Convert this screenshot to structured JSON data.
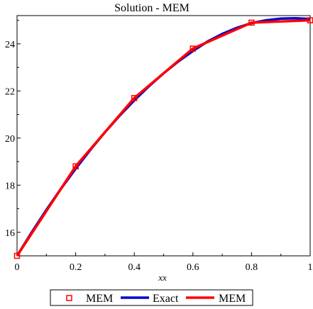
{
  "chart_data": {
    "type": "line",
    "title": "Solution - MEM",
    "xlabel": "xx",
    "ylabel": "",
    "xlim": [
      0,
      1
    ],
    "ylim": [
      15,
      25.2
    ],
    "x_ticks": [
      "0",
      "0.2",
      "0.4",
      "0.6",
      "0.8",
      "1"
    ],
    "y_ticks": [
      "16",
      "18",
      "20",
      "22",
      "24"
    ],
    "x_tick_values": [
      0,
      0.2,
      0.4,
      0.6,
      0.8,
      1
    ],
    "y_tick_values": [
      16,
      18,
      20,
      22,
      24
    ],
    "legend_position": "bottom",
    "series": [
      {
        "name": "MEM",
        "style": "markers",
        "marker": "square",
        "color": "#ff0000",
        "x": [
          0,
          0.2,
          0.4,
          0.6,
          0.8,
          1
        ],
        "y": [
          15.0,
          18.8,
          21.7,
          23.8,
          24.9,
          25.0
        ]
      },
      {
        "name": "Exact",
        "style": "line",
        "color": "#0000cc",
        "x": [
          0,
          0.05,
          0.1,
          0.15,
          0.2,
          0.25,
          0.3,
          0.35,
          0.4,
          0.45,
          0.5,
          0.55,
          0.6,
          0.65,
          0.7,
          0.75,
          0.8,
          0.85,
          0.9,
          0.95,
          1
        ],
        "y": [
          15.0,
          16.0,
          16.95,
          17.85,
          18.7,
          19.5,
          20.25,
          20.95,
          21.6,
          22.2,
          22.75,
          23.25,
          23.7,
          24.1,
          24.42,
          24.68,
          24.88,
          25.0,
          25.07,
          25.09,
          25.06
        ]
      },
      {
        "name": "MEM",
        "style": "line",
        "color": "#ff0000",
        "x": [
          0,
          0.2,
          0.4,
          0.6,
          0.8,
          1
        ],
        "y": [
          15.0,
          18.8,
          21.7,
          23.8,
          24.9,
          25.0
        ]
      }
    ]
  }
}
